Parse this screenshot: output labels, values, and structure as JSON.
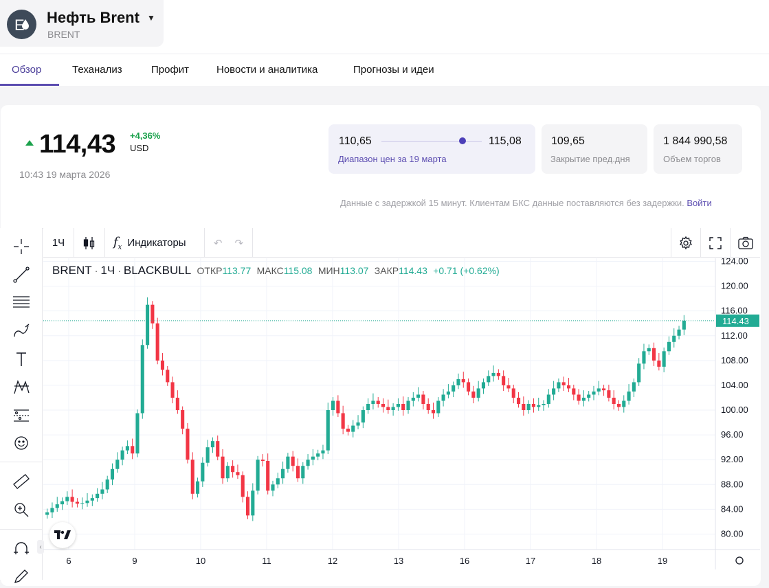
{
  "asset": {
    "name": "Нефть Brent",
    "code": "BRENT",
    "logo_letter": "E"
  },
  "tabs": [
    {
      "label": "Обзор",
      "active": true
    },
    {
      "label": "Теханализ"
    },
    {
      "label": "Профит"
    },
    {
      "label": "Новости и аналитика"
    },
    {
      "label": "Прогнозы и идеи"
    }
  ],
  "quote": {
    "price": "114,43",
    "change": "+4,36%",
    "currency": "USD",
    "timestamp": "10:43 19 марта 2026",
    "direction": "up"
  },
  "stats": {
    "range_low": "110,65",
    "range_high": "115,08",
    "range_label": "Диапазон цен за 19 марта",
    "range_position": 0.81,
    "close_value": "109,65",
    "close_label": "Закрытие пред.дня",
    "volume_value": "1 844 990,58",
    "volume_label": "Объем торгов"
  },
  "delay_note": "Данные с задержкой 15 минут. Клиентам БКС данные поставляются без задержки.",
  "login_link": "Войти",
  "toolbar": {
    "interval": "1Ч",
    "indicators": "Индикаторы"
  },
  "legend": {
    "symbol": "BRENT",
    "interval": "1Ч",
    "source": "BLACKBULL",
    "open_label": "ОТКР",
    "open": "113.77",
    "high_label": "МАКС",
    "high": "115.08",
    "low_label": "МИН",
    "low": "113.07",
    "close_label": "ЗАКР",
    "close": "114.43",
    "change": "+0.71 (+0.62%)"
  },
  "colors": {
    "up": "#22ab94",
    "down": "#f23645",
    "accent": "#5b4cb0",
    "price_up": "#1aa14b"
  },
  "chart_data": {
    "type": "candlestick",
    "title": "",
    "y_ticks": [
      80,
      84,
      88,
      92,
      96,
      100,
      104,
      108,
      112,
      116,
      120,
      124
    ],
    "y_tick_labels": [
      "80.00",
      "84.00",
      "88.00",
      "92.00",
      "96.00",
      "100.00",
      "104.00",
      "108.00",
      "112.00",
      "116.00",
      "120.00",
      "124.00"
    ],
    "x_tick_labels": [
      "6",
      "9",
      "10",
      "11",
      "12",
      "13",
      "16",
      "17",
      "18",
      "19"
    ],
    "ylim": [
      77.5,
      124.5
    ],
    "last_price": 114.43,
    "last_price_label": "114.43",
    "close_series": [
      83.5,
      84.2,
      84.8,
      85.3,
      86.0,
      85.2,
      84.9,
      85.0,
      85.4,
      85.8,
      86.5,
      87.2,
      88.8,
      90.5,
      92.0,
      93.5,
      94.2,
      93.0,
      99.5,
      110.5,
      117.0,
      114.0,
      108.0,
      106.5,
      104.5,
      102.0,
      100.0,
      97.0,
      92.0,
      86.5,
      88.5,
      91.5,
      94.0,
      95.0,
      92.5,
      89.0,
      91.0,
      90.0,
      89.5,
      86.0,
      83.0,
      87.0,
      92.0,
      91.8,
      87.0,
      88.0,
      89.0,
      90.5,
      92.5,
      91.0,
      89.0,
      91.0,
      92.0,
      92.5,
      93.0,
      93.5,
      100.0,
      101.5,
      99.5,
      97.0,
      96.5,
      97.5,
      98.0,
      100.0,
      101.0,
      101.5,
      101.0,
      100.5,
      100.0,
      100.5,
      101.0,
      100.0,
      101.5,
      102.0,
      102.5,
      101.0,
      100.0,
      99.5,
      101.5,
      102.5,
      103.0,
      104.0,
      105.0,
      104.5,
      103.0,
      102.0,
      103.5,
      104.5,
      105.5,
      106.0,
      105.5,
      104.0,
      103.5,
      102.0,
      101.0,
      100.0,
      101.0,
      100.5,
      100.8,
      101.0,
      102.5,
      103.5,
      104.5,
      104.0,
      103.5,
      102.5,
      101.5,
      102.0,
      102.5,
      103.0,
      103.5,
      103.2,
      102.0,
      101.0,
      100.5,
      101.5,
      103.0,
      104.5,
      107.5,
      109.5,
      110.0,
      108.0,
      107.0,
      109.5,
      111.0,
      112.0,
      113.0,
      114.43
    ]
  }
}
